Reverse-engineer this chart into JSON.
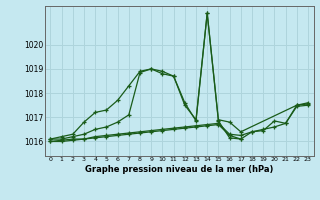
{
  "title": "Graphe pression niveau de la mer (hPa)",
  "background_color": "#c5e8f0",
  "grid_color": "#aed4dc",
  "line_color": "#1a5c1a",
  "xlim": [
    -0.5,
    23.5
  ],
  "ylim": [
    1015.4,
    1021.6
  ],
  "yticks": [
    1016,
    1017,
    1018,
    1019,
    1020
  ],
  "xticks": [
    0,
    1,
    2,
    3,
    4,
    5,
    6,
    7,
    8,
    9,
    10,
    11,
    12,
    13,
    14,
    15,
    16,
    17,
    18,
    19,
    20,
    21,
    22,
    23
  ],
  "lines": [
    {
      "x": [
        0,
        1,
        2,
        3,
        4,
        5,
        6,
        7,
        8,
        9,
        10,
        11,
        12,
        13,
        14,
        15,
        16,
        17,
        22,
        23
      ],
      "y": [
        1016.1,
        1016.2,
        1016.3,
        1016.8,
        1017.2,
        1017.3,
        1017.7,
        1018.3,
        1018.9,
        1019.0,
        1018.8,
        1018.7,
        1017.5,
        1016.9,
        1021.3,
        1016.9,
        1016.8,
        1016.4,
        1017.5,
        1017.6
      ]
    },
    {
      "x": [
        0,
        1,
        2,
        3,
        4,
        5,
        6,
        7,
        8,
        9,
        10,
        11,
        12,
        13,
        14,
        15,
        16,
        17
      ],
      "y": [
        1016.1,
        1016.1,
        1016.2,
        1016.3,
        1016.5,
        1016.6,
        1016.8,
        1017.1,
        1018.85,
        1019.0,
        1018.9,
        1018.7,
        1017.6,
        1016.85,
        1021.3,
        1016.85,
        1016.15,
        1016.1
      ]
    },
    {
      "x": [
        0,
        1,
        2,
        3,
        4,
        5,
        6,
        7,
        8,
        9,
        10,
        11,
        12,
        13,
        14,
        15,
        16,
        17,
        18,
        19,
        20,
        21,
        22,
        23
      ],
      "y": [
        1016.0,
        1016.05,
        1016.1,
        1016.1,
        1016.2,
        1016.25,
        1016.3,
        1016.35,
        1016.4,
        1016.45,
        1016.5,
        1016.55,
        1016.6,
        1016.65,
        1016.7,
        1016.75,
        1016.3,
        1016.25,
        1016.4,
        1016.5,
        1016.6,
        1016.75,
        1017.5,
        1017.55
      ]
    },
    {
      "x": [
        0,
        1,
        2,
        3,
        4,
        5,
        6,
        7,
        8,
        9,
        10,
        11,
        12,
        13,
        14,
        15,
        16,
        17,
        18,
        19,
        20,
        21,
        22,
        23
      ],
      "y": [
        1016.0,
        1016.0,
        1016.05,
        1016.1,
        1016.15,
        1016.2,
        1016.25,
        1016.3,
        1016.35,
        1016.4,
        1016.45,
        1016.5,
        1016.55,
        1016.6,
        1016.65,
        1016.7,
        1016.25,
        1016.1,
        1016.4,
        1016.45,
        1016.85,
        1016.75,
        1017.45,
        1017.5
      ]
    }
  ]
}
